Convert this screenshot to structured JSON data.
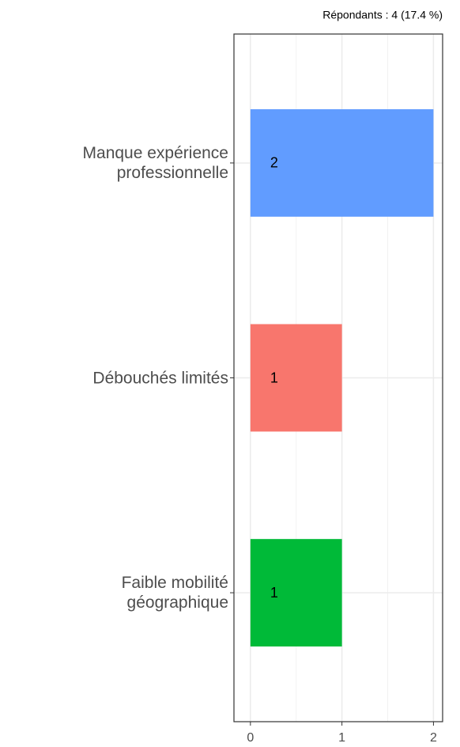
{
  "chart_data": {
    "type": "barh",
    "subtitle": "Répondants : 4 (17.4 %)",
    "categories": [
      "Manque expérience\nprofessionnelle",
      "Débouchés limités",
      "Faible mobilité\ngéographique"
    ],
    "values": [
      2,
      1,
      1
    ],
    "colors": [
      "#619CFF",
      "#F8766D",
      "#00BA38"
    ],
    "xlim": [
      -0.18,
      2.1
    ],
    "xticks": [
      0,
      1,
      2
    ],
    "minor_xticks": [
      0.5,
      1.5
    ],
    "grid": true
  }
}
